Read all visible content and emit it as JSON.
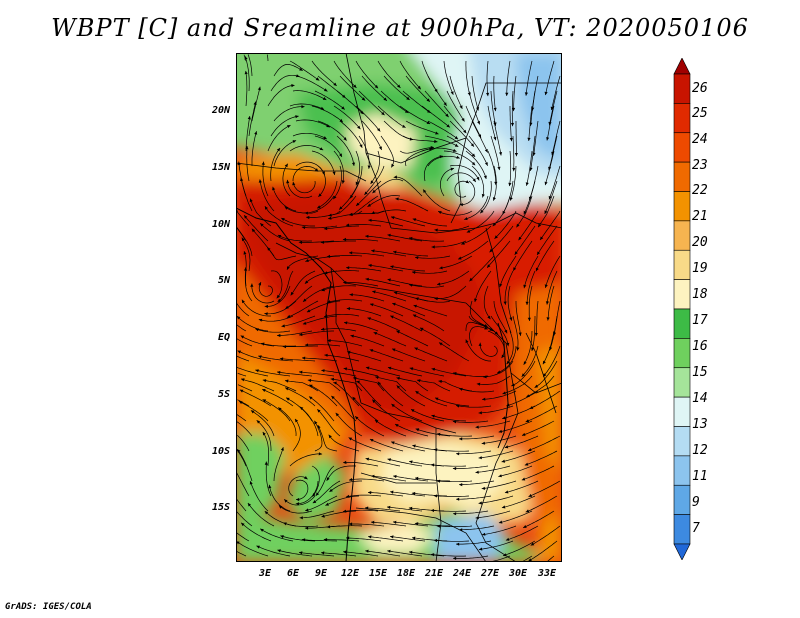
{
  "title": "WBPT [C] and Sreamline at 900hPa, VT: 2020050106",
  "map": {
    "lat_labels": [
      "20N",
      "15N",
      "10N",
      "5N",
      "EQ",
      "5S",
      "10S",
      "15S"
    ],
    "lon_labels": [
      "3E",
      "6E",
      "9E",
      "12E",
      "15E",
      "18E",
      "21E",
      "24E",
      "27E",
      "30E",
      "33E"
    ]
  },
  "colorbar": {
    "labels": [
      "26",
      "25",
      "24",
      "23",
      "22",
      "21",
      "20",
      "19",
      "18",
      "17",
      "16",
      "15",
      "14",
      "13",
      "12",
      "11",
      "9",
      "7"
    ],
    "colors": [
      "#a00000",
      "#c81400",
      "#e02a00",
      "#ee4a00",
      "#f06a00",
      "#f39200",
      "#f6b450",
      "#f8da88",
      "#fdf3c0",
      "#3dbb46",
      "#6fd05e",
      "#a5e49a",
      "#dff5f5",
      "#b4dcf3",
      "#8cc4ee",
      "#5fa8e6",
      "#3d8ae0",
      "#2068d8"
    ]
  },
  "credit": "GrADS: IGES/COLA"
}
